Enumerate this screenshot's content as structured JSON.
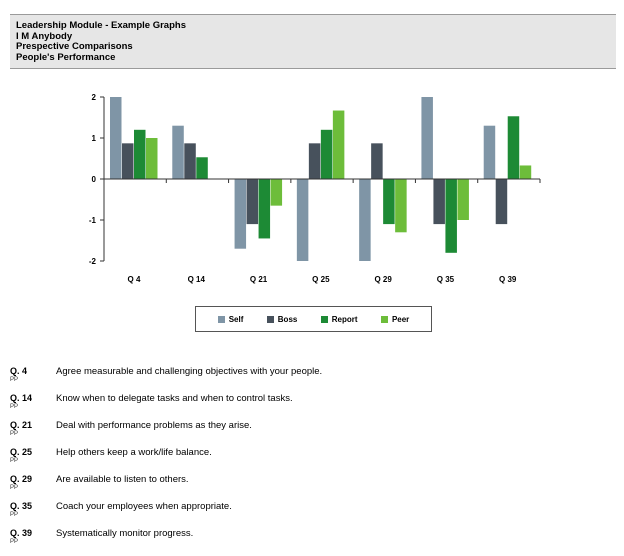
{
  "header": {
    "lines": [
      "Leadership Module - Example Graphs",
      "I M Anybody",
      "Prespective Comparisons",
      "People's Performance"
    ]
  },
  "chart_data": {
    "type": "bar",
    "categories": [
      "Q 4",
      "Q 14",
      "Q 21",
      "Q 25",
      "Q 29",
      "Q 35",
      "Q 39"
    ],
    "series": [
      {
        "name": "Self",
        "color": "#7f95a6",
        "values": [
          2.0,
          1.3,
          -1.7,
          -2.0,
          -2.0,
          2.0,
          1.3
        ]
      },
      {
        "name": "Boss",
        "color": "#47515c",
        "values": [
          0.87,
          0.87,
          -1.1,
          0.87,
          0.87,
          -1.1,
          -1.1
        ]
      },
      {
        "name": "Report",
        "color": "#1d8a35",
        "values": [
          1.2,
          0.53,
          -1.45,
          1.2,
          -1.1,
          -1.8,
          1.53
        ]
      },
      {
        "name": "Peer",
        "color": "#6dbd3a",
        "values": [
          1.0,
          0,
          -0.65,
          1.67,
          -1.3,
          -1.0,
          0.33
        ]
      }
    ],
    "yticks": [
      "2",
      "1",
      "0",
      "-1",
      "-2"
    ],
    "ylim": [
      -2,
      2
    ],
    "grid": false,
    "legend_position": "bottom"
  },
  "questions": [
    {
      "num": "Q. 4",
      "tag": "PP",
      "text": "Agree measurable and challenging objectives with your people."
    },
    {
      "num": "Q. 14",
      "tag": "PP",
      "text": "Know when to delegate tasks and when to control tasks."
    },
    {
      "num": "Q. 21",
      "tag": "PP",
      "text": "Deal with performance problems as they arise."
    },
    {
      "num": "Q. 25",
      "tag": "PP",
      "text": "Help others keep a work/life balance."
    },
    {
      "num": "Q. 29",
      "tag": "PP",
      "text": "Are available to listen to others."
    },
    {
      "num": "Q. 35",
      "tag": "PP",
      "text": "Coach your employees when appropriate."
    },
    {
      "num": "Q. 39",
      "tag": "PP",
      "text": "Systematically monitor progress."
    }
  ]
}
